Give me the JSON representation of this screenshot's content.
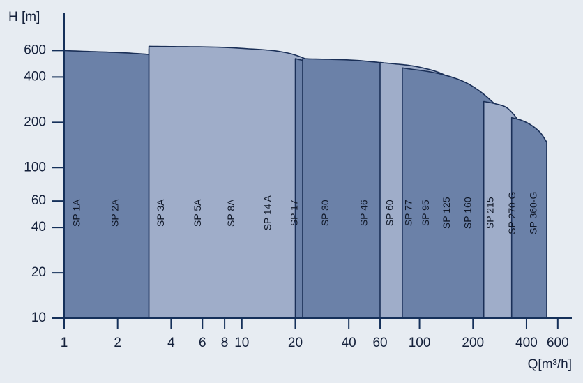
{
  "chart_data": {
    "type": "area",
    "title": "",
    "xlabel": "Q[m³/h]",
    "ylabel": "H [m]",
    "x_scale": "log",
    "y_scale": "log",
    "xlim": [
      1,
      720
    ],
    "ylim": [
      10,
      1050
    ],
    "x_ticks": [
      1,
      2,
      4,
      6,
      8,
      10,
      20,
      40,
      60,
      100,
      200,
      400,
      600
    ],
    "y_ticks": [
      10,
      20,
      40,
      60,
      100,
      200,
      400,
      600
    ],
    "grid": false,
    "legend": "none",
    "colors": {
      "background": "#e7ecf2",
      "light": "#9fadc9",
      "dark": "#6b81a8",
      "outline": "#1a2f57",
      "axis": "#15305a"
    },
    "series": [
      {
        "name": "SP 1A",
        "shade": "dark",
        "qmin": 1.0,
        "qmax": 1.4,
        "hmin": 10,
        "bottom_max_h": 66,
        "curve": [
          [
            1.0,
            190
          ],
          [
            1.1,
            160
          ],
          [
            1.2,
            125
          ],
          [
            1.3,
            95
          ],
          [
            1.4,
            66
          ]
        ]
      },
      {
        "name": "SP 2A",
        "shade": "light",
        "qmin": 1.4,
        "qmax": 2.7,
        "hmin": 10,
        "bottom_max_h": 145,
        "curve": [
          [
            1.0,
            505
          ],
          [
            1.4,
            470
          ],
          [
            1.8,
            415
          ],
          [
            2.2,
            330
          ],
          [
            2.5,
            240
          ],
          [
            2.7,
            145
          ]
        ]
      },
      {
        "name": "SP 3A",
        "shade": "dark",
        "qmin": 2.7,
        "qmax": 4.6,
        "hmin": 10,
        "bottom_max_h": 125,
        "curve": [
          [
            2.1,
            315
          ],
          [
            2.6,
            305
          ],
          [
            3.2,
            280
          ],
          [
            3.8,
            235
          ],
          [
            4.3,
            180
          ],
          [
            4.6,
            125
          ]
        ]
      },
      {
        "name": "SP 5A",
        "shade": "light",
        "qmin": 4.6,
        "qmax": 7.0,
        "hmin": 10,
        "bottom_max_h": 130,
        "curve": [
          [
            1.0,
            545
          ],
          [
            2.0,
            510
          ],
          [
            3.5,
            470
          ],
          [
            5.0,
            400
          ],
          [
            6.0,
            320
          ],
          [
            6.7,
            220
          ],
          [
            7.0,
            130
          ]
        ]
      },
      {
        "name": "SP 8A",
        "shade": "dark",
        "qmin": 7.0,
        "qmax": 11.0,
        "hmin": 10,
        "bottom_max_h": 270,
        "curve": [
          [
            1.0,
            600
          ],
          [
            3.0,
            565
          ],
          [
            6.0,
            510
          ],
          [
            8.0,
            440
          ],
          [
            9.5,
            350
          ],
          [
            11.0,
            270
          ]
        ]
      },
      {
        "name": "SP 14 A",
        "shade": "light",
        "qmin": 11.0,
        "qmax": 18.0,
        "hmin": 10,
        "bottom_max_h": 75,
        "curve": [
          [
            11.0,
            140
          ],
          [
            13.0,
            128
          ],
          [
            15.0,
            110
          ],
          [
            17.0,
            90
          ],
          [
            18.0,
            75
          ]
        ]
      },
      {
        "name": "SP 17",
        "shade": "dark",
        "qmin": 18.0,
        "qmax": 22.0,
        "hmin": 10,
        "bottom_max_h": 430,
        "curve": [
          [
            3.0,
            615
          ],
          [
            8.0,
            600
          ],
          [
            12.0,
            570
          ],
          [
            16.0,
            510
          ],
          [
            20.0,
            455
          ],
          [
            22.0,
            430
          ]
        ]
      },
      {
        "name": "SP 30",
        "shade": "light",
        "qmin": 22.0,
        "qmax": 40.0,
        "hmin": 10,
        "bottom_max_h": 285,
        "curve": [
          [
            3.0,
            640
          ],
          [
            10.0,
            620
          ],
          [
            20.0,
            560
          ],
          [
            28.0,
            460
          ],
          [
            35.0,
            360
          ],
          [
            40.0,
            285
          ]
        ]
      },
      {
        "name": "SP 46",
        "shade": "dark",
        "qmin": 40.0,
        "qmax": 60.0,
        "hmin": 10,
        "bottom_max_h": 225,
        "curve": [
          [
            20.0,
            530
          ],
          [
            30.0,
            470
          ],
          [
            40.0,
            400
          ],
          [
            50.0,
            320
          ],
          [
            60.0,
            225
          ]
        ]
      },
      {
        "name": "SP 60",
        "shade": "light",
        "qmin": 60.0,
        "qmax": 78.0,
        "hmin": 10,
        "bottom_max_h": 145,
        "curve": [
          [
            35.0,
            420
          ],
          [
            45.0,
            375
          ],
          [
            55.0,
            315
          ],
          [
            65.0,
            250
          ],
          [
            72.0,
            195
          ],
          [
            78.0,
            145
          ]
        ]
      },
      {
        "name": "SP 77",
        "shade": "dark",
        "qmin": 78.0,
        "qmax": 98.0,
        "hmin": 10,
        "bottom_max_h": 145,
        "curve": [
          [
            40.0,
            415
          ],
          [
            55.0,
            385
          ],
          [
            70.0,
            325
          ],
          [
            85.0,
            245
          ],
          [
            93.0,
            190
          ],
          [
            98.0,
            145
          ]
        ]
      },
      {
        "name": "SP 95",
        "shade": "light",
        "qmin": 98.0,
        "qmax": 122.0,
        "hmin": 10,
        "bottom_max_h": 135,
        "curve": [
          [
            45.0,
            425
          ],
          [
            65.0,
            380
          ],
          [
            85.0,
            305
          ],
          [
            100.0,
            235
          ],
          [
            113.0,
            180
          ],
          [
            122.0,
            135
          ]
        ]
      },
      {
        "name": "SP 125",
        "shade": "dark",
        "qmin": 122.0,
        "qmax": 168.0,
        "hmin": 10,
        "bottom_max_h": 255,
        "curve": [
          [
            22.0,
            530
          ],
          [
            50.0,
            510
          ],
          [
            80.0,
            470
          ],
          [
            110.0,
            410
          ],
          [
            140.0,
            330
          ],
          [
            168.0,
            255
          ]
        ]
      },
      {
        "name": "SP 160",
        "shade": "light",
        "qmin": 168.0,
        "qmax": 212.0,
        "hmin": 10,
        "bottom_max_h": 230,
        "curve": [
          [
            60.0,
            500
          ],
          [
            100.0,
            465
          ],
          [
            140.0,
            410
          ],
          [
            175.0,
            340
          ],
          [
            200.0,
            275
          ],
          [
            212.0,
            230
          ]
        ]
      },
      {
        "name": "SP 215",
        "shade": "dark",
        "qmin": 212.0,
        "qmax": 300.0,
        "hmin": 10,
        "bottom_max_h": 230,
        "curve": [
          [
            80.0,
            460
          ],
          [
            130.0,
            420
          ],
          [
            180.0,
            370
          ],
          [
            220.0,
            320
          ],
          [
            265.0,
            265
          ],
          [
            300.0,
            230
          ]
        ]
      },
      {
        "name": "SP 270-G",
        "shade": "light",
        "qmin": 300.0,
        "qmax": 375.0,
        "hmin": 10,
        "bottom_max_h": 190,
        "curve": [
          [
            230.0,
            275
          ],
          [
            270.0,
            265
          ],
          [
            310.0,
            250
          ],
          [
            345.0,
            220
          ],
          [
            375.0,
            190
          ]
        ]
      },
      {
        "name": "SP 360-G",
        "shade": "dark",
        "qmin": 375.0,
        "qmax": 520.0,
        "hmin": 10,
        "bottom_max_h": 148,
        "curve": [
          [
            330.0,
            215
          ],
          [
            380.0,
            205
          ],
          [
            430.0,
            190
          ],
          [
            480.0,
            170
          ],
          [
            520.0,
            148
          ]
        ]
      }
    ]
  }
}
